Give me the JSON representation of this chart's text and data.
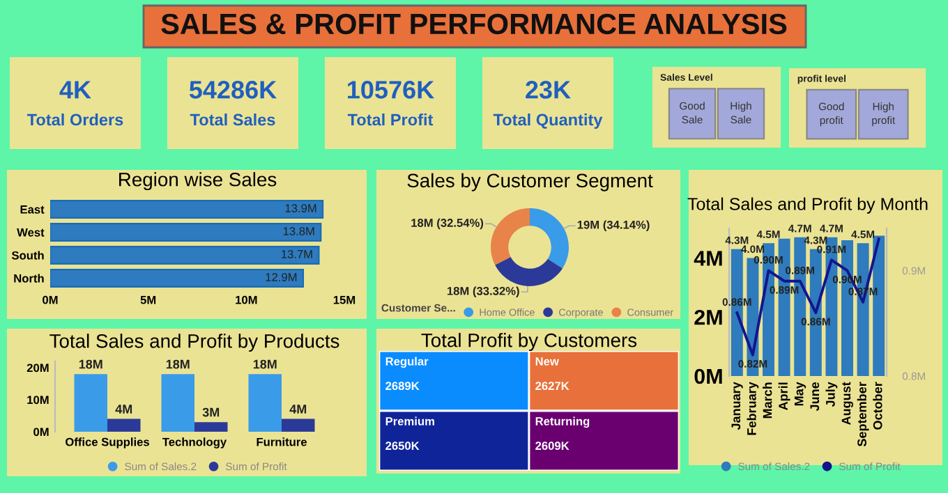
{
  "chart_data": [
    {
      "type": "other",
      "title": "SALES & PROFIT PERFORMANCE ANALYSIS",
      "annotations": [
        "4K",
        "Total Orders",
        "54286K",
        "Total Sales",
        "10576K",
        "Total Profit",
        "23K",
        "Total Quantity"
      ]
    },
    {
      "type": "other",
      "title": "Sales Level",
      "annotations": [
        "Good Sale",
        "High Sale"
      ]
    },
    {
      "type": "other",
      "title": "profit level",
      "annotations": [
        "Good profit",
        "High profit"
      ]
    },
    {
      "type": "bar",
      "title": "Region wise Sales",
      "orientation": "horizontal",
      "categories": [
        "East",
        "West",
        "South",
        "North"
      ],
      "values": [
        13.9,
        13.8,
        13.7,
        12.9
      ],
      "value_labels": [
        "13.9M",
        "13.8M",
        "13.7M",
        "12.9M"
      ],
      "color": "#2e7bbf",
      "xlim": [
        0,
        15
      ],
      "xticks": [
        {
          "value": 0,
          "label": "0M"
        },
        {
          "value": 5,
          "label": "5M"
        },
        {
          "value": 10,
          "label": "10M"
        },
        {
          "value": 15,
          "label": "15M"
        }
      ]
    },
    {
      "type": "donut",
      "title": "Sales by Customer Segment",
      "categories": [
        "Home Office",
        "Corporate",
        "Consumer"
      ],
      "values": [
        34.14,
        33.32,
        32.54
      ],
      "value_labels": [
        "19M (34.14%)",
        "18M (33.32%)",
        "18M (32.54%)"
      ],
      "colors": [
        "#3a9be8",
        "#2b3a98",
        "#e8834a"
      ],
      "legend": "bottom",
      "legend_title": "Customer Se..."
    },
    {
      "type": "bar",
      "title": "Total Sales and Profit by Month",
      "categories": [
        "January",
        "February",
        "March",
        "April",
        "May",
        "June",
        "July",
        "August",
        "September",
        "October"
      ],
      "legend": "bottom",
      "marker": "none",
      "line_style": "solid",
      "ylim": [
        0,
        5
      ],
      "yticks": [
        {
          "value": 0,
          "label": "0M"
        },
        {
          "value": 2,
          "label": "2M"
        },
        {
          "value": 4,
          "label": "4M"
        }
      ],
      "y2lim": [
        0.8,
        0.94
      ],
      "y2ticks": [
        {
          "value": 0.8,
          "label": "0.8M"
        },
        {
          "value": 0.9,
          "label": "0.9M"
        }
      ],
      "series": [
        {
          "name": "Sum of Sales.2",
          "type": "bar",
          "color": "#2e7bbd",
          "values": [
            4.3,
            4.0,
            4.5,
            4.65,
            4.7,
            4.3,
            4.7,
            4.6,
            4.5,
            4.75
          ],
          "value_labels": [
            "4.3M",
            "4.0M",
            "4.5M",
            null,
            "4.7M",
            "4.3M",
            "4.7M",
            null,
            "4.5M",
            null
          ]
        },
        {
          "name": "Sum of Profit",
          "type": "line",
          "axis": "y2",
          "color": "#14148f",
          "values": [
            0.86,
            0.82,
            0.9,
            0.89,
            0.89,
            0.86,
            0.91,
            0.9,
            0.87,
            0.93
          ],
          "value_labels": [
            "0.86M",
            "0.82M",
            "0.90M",
            "0.89M",
            "0.89M",
            "0.86M",
            "0.91M",
            "0.90M",
            "0.87M",
            null
          ]
        }
      ]
    },
    {
      "type": "bar",
      "title": "Total Sales and Profit by Products",
      "categories": [
        "Office Supplies",
        "Technology",
        "Furniture"
      ],
      "legend": "bottom",
      "ylim": [
        0,
        22
      ],
      "yticks": [
        {
          "value": 0,
          "label": "0M"
        },
        {
          "value": 10,
          "label": "10M"
        },
        {
          "value": 20,
          "label": "20M"
        }
      ],
      "series": [
        {
          "name": "Sum of Sales.2",
          "type": "bar",
          "color": "#3a9be8",
          "values": [
            18,
            18,
            18
          ],
          "value_labels": [
            "18M",
            "18M",
            "18M"
          ]
        },
        {
          "name": "Sum of Profit",
          "type": "bar",
          "color": "#2b3a98",
          "values": [
            4,
            3,
            4
          ],
          "value_labels": [
            "4M",
            "3M",
            "4M"
          ]
        }
      ]
    },
    {
      "type": "other",
      "title": "Total Profit by Customers",
      "categories": [
        "Regular",
        "New",
        "Premium",
        "Returning"
      ],
      "values": [
        2689,
        2627,
        2650,
        2609
      ],
      "value_labels": [
        "2689K",
        "2627K",
        "2650K",
        "2609K"
      ],
      "colors": [
        "#0a8cff",
        "#e8703a",
        "#10249a",
        "#6a0070"
      ]
    }
  ]
}
